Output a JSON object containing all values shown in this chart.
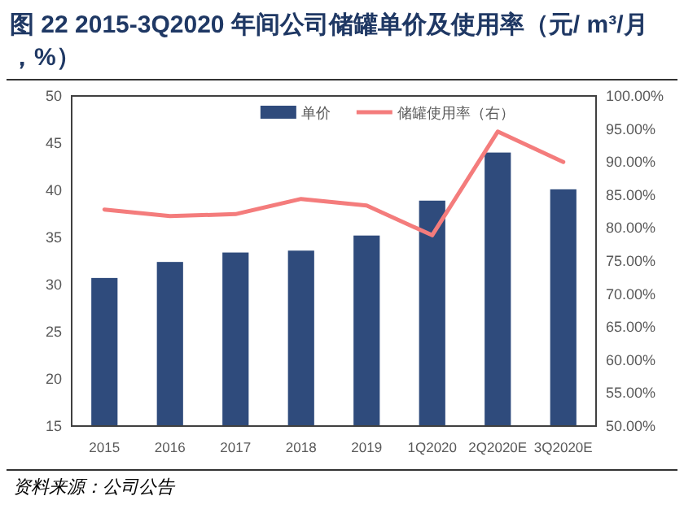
{
  "chart_data": {
    "type": "bar",
    "title": "图 22   2015-3Q2020 年间公司储罐单价及使用率（元/ m³/月，%）",
    "categories": [
      "2015",
      "2016",
      "2017",
      "2018",
      "2019",
      "1Q2020",
      "2Q2020E",
      "3Q2020E"
    ],
    "series": [
      {
        "name": "单价",
        "color": "#2f4b7c",
        "values": [
          30.7,
          32.4,
          33.4,
          33.6,
          35.2,
          38.9,
          44.0,
          40.1
        ]
      },
      {
        "name": "储罐使用率（右）",
        "type": "line",
        "axis": "y2",
        "color": "#f47c7c",
        "values": [
          82.8,
          81.8,
          82.1,
          84.4,
          83.4,
          78.9,
          94.6,
          90.0
        ]
      }
    ],
    "ylim": [
      15,
      50
    ],
    "yticks": [
      15,
      20,
      25,
      30,
      35,
      40,
      45,
      50
    ],
    "y2lim": [
      50,
      100
    ],
    "y2ticks": [
      {
        "value": 50,
        "label": "50.00%"
      },
      {
        "value": 55,
        "label": "55.00%"
      },
      {
        "value": 60,
        "label": "60.00%"
      },
      {
        "value": 65,
        "label": "65.00%"
      },
      {
        "value": 70,
        "label": "70.00%"
      },
      {
        "value": 75,
        "label": "75.00%"
      },
      {
        "value": 80,
        "label": "80.00%"
      },
      {
        "value": 85,
        "label": "85.00%"
      },
      {
        "value": 90,
        "label": "90.00%"
      },
      {
        "value": 95,
        "label": "95.00%"
      },
      {
        "value": 100,
        "label": "100.00%"
      }
    ],
    "legend": "top",
    "grid": false,
    "annotations": [
      "资料来源：公司公告"
    ]
  }
}
